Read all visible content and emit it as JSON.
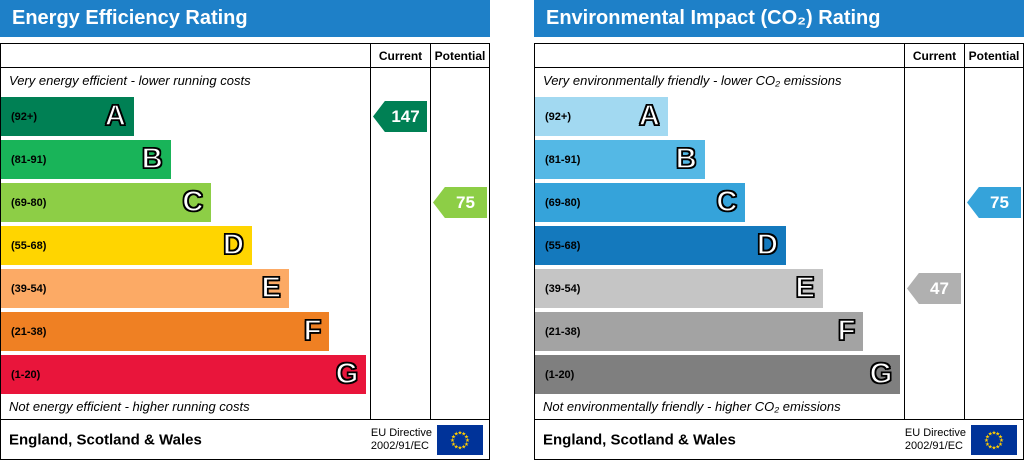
{
  "chart_data": [
    {
      "type": "bar",
      "title": "Energy Efficiency Rating",
      "header_color": "#1e80c8",
      "column_headers": [
        "Current",
        "Potential"
      ],
      "top_note": "Very energy efficient - lower running costs",
      "bottom_note": "Not energy efficient - higher running costs",
      "categories": [
        "A",
        "B",
        "C",
        "D",
        "E",
        "F",
        "G"
      ],
      "ranges": [
        "(92+)",
        "(81-91)",
        "(69-80)",
        "(55-68)",
        "(39-54)",
        "(21-38)",
        "(1-20)"
      ],
      "band_colors": [
        "#008054",
        "#19b459",
        "#8dce46",
        "#ffd500",
        "#fcaa65",
        "#ef8023",
        "#e9153b"
      ],
      "bar_widths_pct": [
        36,
        46,
        57,
        68,
        78,
        89,
        99
      ],
      "current": {
        "value": 147,
        "band_index": 0,
        "band": "A",
        "color": "#008054"
      },
      "potential": {
        "value": 75,
        "band_index": 2,
        "band": "C",
        "color": "#8dce46"
      },
      "footer": {
        "region": "England, Scotland & Wales",
        "directive_line1": "EU Directive",
        "directive_line2": "2002/91/EC"
      },
      "flag_colors": {
        "background": "#003399",
        "stars": "#ffcc00"
      }
    },
    {
      "type": "bar",
      "title": "Environmental Impact (CO₂) Rating",
      "header_color": "#1e80c8",
      "column_headers": [
        "Current",
        "Potential"
      ],
      "top_note": "Very environmentally friendly - lower CO₂ emissions",
      "bottom_note": "Not environmentally friendly - higher CO₂ emissions",
      "categories": [
        "A",
        "B",
        "C",
        "D",
        "E",
        "F",
        "G"
      ],
      "ranges": [
        "(92+)",
        "(81-91)",
        "(69-80)",
        "(55-68)",
        "(39-54)",
        "(21-38)",
        "(1-20)"
      ],
      "band_colors": [
        "#a2d9f1",
        "#54b8e5",
        "#35a3da",
        "#1479bd",
        "#c5c5c5",
        "#a3a3a3",
        "#7f7f7f"
      ],
      "bar_widths_pct": [
        36,
        46,
        57,
        68,
        78,
        89,
        99
      ],
      "current": {
        "value": 47,
        "band_index": 4,
        "band": "E",
        "color": "#b0b0b0"
      },
      "potential": {
        "value": 75,
        "band_index": 2,
        "band": "C",
        "color": "#35a3da"
      },
      "footer": {
        "region": "England, Scotland & Wales",
        "directive_line1": "EU Directive",
        "directive_line2": "2002/91/EC"
      },
      "flag_colors": {
        "background": "#003399",
        "stars": "#ffcc00"
      }
    }
  ]
}
